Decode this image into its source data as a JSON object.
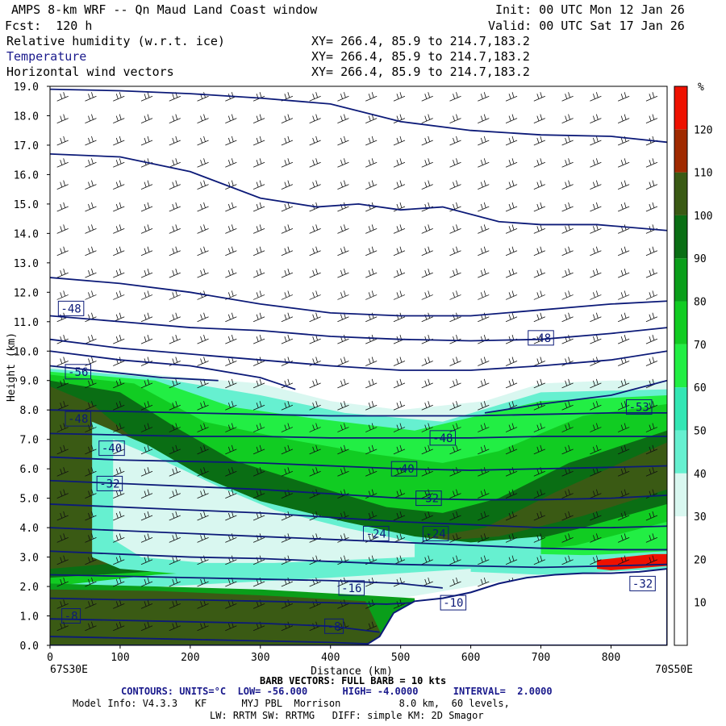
{
  "header": {
    "title": "AMPS 8-km WRF -- Qn Maud Land Coast window",
    "init": "Init: 00 UTC Mon 12 Jan 26",
    "fcst": "Fcst:  120 h",
    "valid": "Valid: 00 UTC Sat 17 Jan 26",
    "field1": "Relative humidity (w.r.t. ice)",
    "field2": "Temperature",
    "field3": "Horizontal wind vectors",
    "xy1": "XY= 266.4, 85.9 to 214.7,183.2",
    "xy2": "XY= 266.4, 85.9 to 214.7,183.2",
    "xy3": "XY= 266.4, 85.9 to 214.7,183.2"
  },
  "colors": {
    "temp_contour": "#0c1a78",
    "terrain": "#ffffff",
    "rh_bands": [
      "#ffffff",
      "#ffffff",
      "#ffffff",
      "#d9f7f0",
      "#66f0d0",
      "#33e6b4",
      "#22ee44",
      "#11cc22",
      "#0a9e1a",
      "#0a6e14",
      "#3a5a14",
      "#a02a00",
      "#ee1100"
    ]
  },
  "chart_data": {
    "type": "cross-section",
    "xlabel": "Distance (km)",
    "ylabel": "Height (km)",
    "xlim": [
      0,
      880
    ],
    "ylim": [
      0,
      19
    ],
    "x_ticks": [
      "0",
      "100",
      "200",
      "300",
      "400",
      "500",
      "600",
      "700",
      "800"
    ],
    "y_ticks": [
      "0.0",
      "1.0",
      "2.0",
      "3.0",
      "4.0",
      "5.0",
      "6.0",
      "7.0",
      "8.0",
      "9.0",
      "10.0",
      "11.0",
      "12.0",
      "13.0",
      "14.0",
      "15.0",
      "16.0",
      "17.0",
      "18.0",
      "19.0"
    ],
    "x_endpoints": {
      "left": "67S30E",
      "right": "70S50E"
    },
    "colorbar": {
      "unit": "%",
      "levels": [
        10,
        20,
        30,
        40,
        50,
        60,
        70,
        80,
        90,
        100,
        110,
        120
      ],
      "labels": [
        "10",
        "20",
        "30",
        "40",
        "50",
        "60",
        "70",
        "80",
        "90",
        "100",
        "110",
        "120"
      ]
    },
    "terrain_profile": {
      "x_km": [
        0,
        450,
        470,
        490,
        520,
        560,
        600,
        640,
        680,
        720,
        760,
        800,
        840,
        880
      ],
      "z_km": [
        0,
        0,
        0.3,
        1.1,
        1.5,
        1.6,
        1.8,
        2.1,
        2.3,
        2.4,
        2.45,
        2.45,
        2.5,
        2.6
      ]
    },
    "temperature_labels": [
      {
        "text": "-48",
        "x_km": 30,
        "z_km": 11.45
      },
      {
        "text": "-48",
        "x_km": 700,
        "z_km": 10.45
      },
      {
        "text": "-56",
        "x_km": 40,
        "z_km": 9.3
      },
      {
        "text": "-48",
        "x_km": 40,
        "z_km": 7.7
      },
      {
        "text": "-53",
        "x_km": 840,
        "z_km": 8.1
      },
      {
        "text": "-48",
        "x_km": 560,
        "z_km": 7.05
      },
      {
        "text": "-40",
        "x_km": 88,
        "z_km": 6.7
      },
      {
        "text": "-40",
        "x_km": 505,
        "z_km": 6.0
      },
      {
        "text": "-32",
        "x_km": 85,
        "z_km": 5.5
      },
      {
        "text": "-32",
        "x_km": 540,
        "z_km": 5.0
      },
      {
        "text": "-24",
        "x_km": 465,
        "z_km": 3.8
      },
      {
        "text": "-24",
        "x_km": 550,
        "z_km": 3.8
      },
      {
        "text": "-16",
        "x_km": 430,
        "z_km": 1.95
      },
      {
        "text": "-10",
        "x_km": 575,
        "z_km": 1.45
      },
      {
        "text": "-8",
        "x_km": 30,
        "z_km": 1.0
      },
      {
        "text": "-8",
        "x_km": 405,
        "z_km": 0.65
      },
      {
        "text": "-32",
        "x_km": 845,
        "z_km": 2.1
      }
    ],
    "temperature_contours": [
      {
        "x_km": [
          0,
          100,
          200,
          300,
          400,
          500,
          600,
          700,
          800,
          880
        ],
        "z_km": [
          18.9,
          18.85,
          18.75,
          18.6,
          18.4,
          17.8,
          17.5,
          17.35,
          17.3,
          17.1
        ]
      },
      {
        "x_km": [
          0,
          100,
          200,
          300,
          380,
          440,
          500,
          560,
          640,
          700,
          780,
          880
        ],
        "z_km": [
          16.7,
          16.6,
          16.1,
          15.2,
          14.9,
          15.0,
          14.8,
          14.9,
          14.4,
          14.3,
          14.3,
          14.1
        ]
      },
      {
        "x_km": [
          0,
          100,
          200,
          300,
          400,
          500,
          600,
          700,
          800,
          880
        ],
        "z_km": [
          12.5,
          12.3,
          12.0,
          11.6,
          11.3,
          11.2,
          11.2,
          11.4,
          11.6,
          11.7
        ]
      },
      {
        "x_km": [
          0,
          100,
          200,
          300,
          400,
          500,
          600,
          700,
          800,
          880
        ],
        "z_km": [
          11.2,
          11.0,
          10.8,
          10.7,
          10.5,
          10.4,
          10.35,
          10.4,
          10.6,
          10.8
        ]
      },
      {
        "x_km": [
          0,
          100,
          200,
          300,
          400,
          500,
          600,
          700,
          800,
          880
        ],
        "z_km": [
          10.4,
          10.1,
          9.9,
          9.7,
          9.5,
          9.35,
          9.35,
          9.5,
          9.7,
          10.0
        ]
      },
      {
        "x_km": [
          0,
          100,
          200,
          300,
          350
        ],
        "z_km": [
          10.0,
          9.7,
          9.5,
          9.1,
          8.7
        ]
      },
      {
        "x_km": [
          0,
          80,
          160,
          240
        ],
        "z_km": [
          9.5,
          9.3,
          9.1,
          9.0
        ]
      },
      {
        "x_km": [
          620,
          700,
          800,
          880
        ],
        "z_km": [
          7.9,
          8.2,
          8.5,
          9.0
        ]
      },
      {
        "x_km": [
          0,
          100,
          200,
          300,
          400,
          500,
          600,
          700,
          800,
          880
        ],
        "z_km": [
          8.0,
          7.95,
          7.9,
          7.85,
          7.8,
          7.8,
          7.8,
          7.85,
          7.9,
          7.9
        ]
      },
      {
        "x_km": [
          0,
          100,
          200,
          300,
          400,
          500,
          600,
          700,
          800,
          880
        ],
        "z_km": [
          7.2,
          7.15,
          7.1,
          7.1,
          7.05,
          7.05,
          7.05,
          7.1,
          7.1,
          7.1
        ]
      },
      {
        "x_km": [
          0,
          100,
          200,
          300,
          400,
          500,
          600,
          700,
          800,
          880
        ],
        "z_km": [
          6.4,
          6.3,
          6.25,
          6.2,
          6.1,
          6.0,
          5.95,
          6.0,
          6.05,
          6.1
        ]
      },
      {
        "x_km": [
          0,
          100,
          200,
          300,
          400,
          500,
          600,
          700,
          800,
          880
        ],
        "z_km": [
          5.6,
          5.5,
          5.4,
          5.3,
          5.15,
          5.0,
          4.95,
          4.95,
          5.0,
          5.1
        ]
      },
      {
        "x_km": [
          0,
          100,
          200,
          300,
          400,
          500,
          600,
          700,
          800,
          880
        ],
        "z_km": [
          4.8,
          4.7,
          4.6,
          4.5,
          4.35,
          4.2,
          4.1,
          4.0,
          4.0,
          4.05
        ]
      },
      {
        "x_km": [
          0,
          100,
          200,
          300,
          400,
          500,
          600,
          700,
          800,
          880
        ],
        "z_km": [
          4.0,
          3.9,
          3.8,
          3.7,
          3.6,
          3.5,
          3.4,
          3.3,
          3.25,
          3.25
        ]
      },
      {
        "x_km": [
          0,
          100,
          200,
          300,
          400,
          500,
          600,
          700,
          800,
          880
        ],
        "z_km": [
          3.2,
          3.1,
          3.0,
          2.95,
          2.85,
          2.75,
          2.7,
          2.65,
          2.7,
          2.75
        ]
      },
      {
        "x_km": [
          0,
          100,
          200,
          300,
          400,
          500,
          560
        ],
        "z_km": [
          2.4,
          2.35,
          2.3,
          2.25,
          2.2,
          2.1,
          1.95
        ]
      },
      {
        "x_km": [
          0,
          100,
          200,
          300,
          400,
          480,
          520
        ],
        "z_km": [
          1.6,
          1.55,
          1.55,
          1.5,
          1.45,
          1.4,
          1.45
        ]
      },
      {
        "x_km": [
          0,
          100,
          200,
          300,
          400,
          470
        ],
        "z_km": [
          0.9,
          0.85,
          0.8,
          0.75,
          0.65,
          0.45
        ]
      },
      {
        "x_km": [
          0,
          100,
          200,
          300,
          400,
          455
        ],
        "z_km": [
          0.3,
          0.25,
          0.2,
          0.15,
          0.1,
          0.05
        ]
      }
    ]
  },
  "footer": {
    "left_lon": "67S30E",
    "right_lon": "70S50E",
    "barb": "BARB VECTORS: FULL BARB = 10 kts",
    "contours": "CONTOURS: UNITS=°C  LOW= -56.000      HIGH= -4.0000      INTERVAL=  2.0000",
    "model": "Model Info: V4.3.3   KF      MYJ PBL  Morrison          8.0 km,  60 levels,",
    "model2": "LW: RRTM SW: RRTMG   DIFF: simple KM: 2D Smagor"
  }
}
